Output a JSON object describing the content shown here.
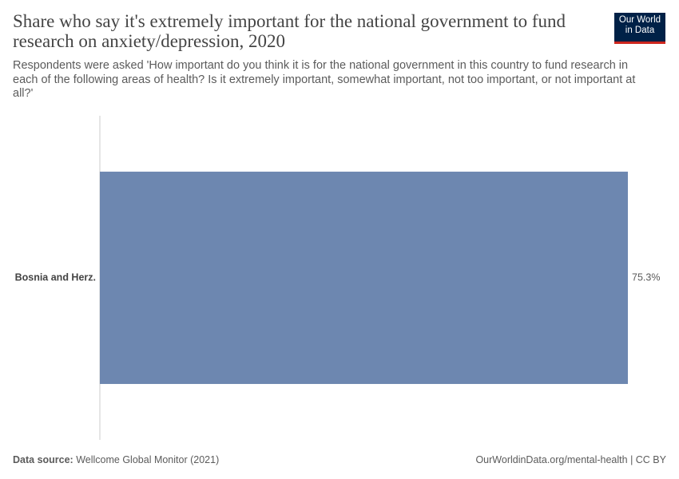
{
  "chart_data": {
    "type": "bar",
    "orientation": "horizontal",
    "title": "Share who say it's extremely important for the national government to fund research on anxiety/depression, 2020",
    "subtitle": "Respondents were asked 'How important do you think it is for the national government in this country to fund research in each of the following areas of health? Is it extremely important, somewhat important, not too important, or not important at all?'",
    "categories": [
      "Bosnia and Herz."
    ],
    "values": [
      75.3
    ],
    "value_labels": [
      "75.3%"
    ],
    "color": "#6d87b0",
    "logo": [
      "Our World",
      "in Data"
    ],
    "source_label": "Data source:",
    "source": "Wellcome Global Monitor (2021)",
    "credit": "OurWorldinData.org/mental-health | CC BY"
  }
}
